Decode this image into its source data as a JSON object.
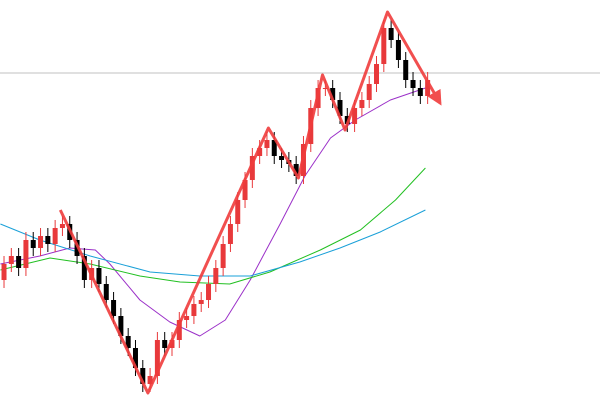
{
  "chart_data": {
    "type": "candlestick",
    "categories": [
      null,
      null,
      null,
      null,
      null,
      null,
      null,
      null,
      null,
      null,
      null,
      null,
      null,
      null,
      null,
      null,
      null,
      null,
      null,
      null,
      null,
      null,
      null,
      null,
      null,
      null,
      null,
      null,
      null,
      null,
      null,
      null,
      null,
      null,
      null,
      null,
      null,
      null,
      null,
      null,
      null,
      null,
      null,
      null,
      null,
      null,
      null,
      null,
      null,
      null,
      null,
      null,
      null,
      null,
      null,
      null,
      null,
      null,
      null
    ],
    "open": [
      30,
      34,
      36,
      33,
      40,
      38,
      41,
      39,
      43,
      44,
      40,
      36,
      30,
      33,
      29,
      25,
      21,
      16,
      13,
      8,
      4,
      6,
      15,
      13,
      15,
      20,
      21,
      24,
      25,
      29,
      33,
      39,
      44,
      50,
      55,
      61,
      63,
      65,
      61,
      60,
      59,
      56,
      64,
      73,
      78,
      78,
      75,
      71,
      69,
      73,
      75,
      79,
      84,
      93,
      90,
      85,
      80,
      78,
      76
    ],
    "high": [
      36,
      38,
      38,
      42,
      42,
      43,
      43,
      45,
      46,
      46,
      42,
      38,
      35,
      35,
      31,
      27,
      23,
      18,
      15,
      10,
      8,
      17,
      17,
      17,
      22,
      23,
      26,
      27,
      31,
      35,
      41,
      46,
      52,
      57,
      63,
      65,
      67,
      67,
      63,
      62,
      61,
      66,
      75,
      80,
      80,
      80,
      77,
      73,
      75,
      77,
      81,
      86,
      95,
      95,
      92,
      87,
      82,
      80,
      82
    ],
    "low": [
      28,
      32,
      31,
      31,
      36,
      36,
      37,
      37,
      41,
      38,
      34,
      28,
      28,
      27,
      23,
      19,
      14,
      11,
      6,
      2,
      2,
      4,
      11,
      11,
      13,
      18,
      19,
      22,
      23,
      27,
      31,
      37,
      42,
      48,
      53,
      59,
      61,
      59,
      58,
      57,
      54,
      54,
      62,
      71,
      76,
      73,
      69,
      67,
      67,
      71,
      73,
      77,
      82,
      88,
      83,
      78,
      76,
      74,
      74
    ],
    "close": [
      34,
      36,
      33,
      40,
      38,
      41,
      39,
      43,
      44,
      40,
      36,
      30,
      33,
      29,
      25,
      21,
      16,
      13,
      8,
      4,
      6,
      15,
      13,
      15,
      20,
      21,
      24,
      25,
      29,
      33,
      39,
      44,
      50,
      55,
      61,
      63,
      65,
      61,
      60,
      59,
      56,
      64,
      73,
      78,
      78,
      75,
      71,
      69,
      73,
      75,
      79,
      84,
      93,
      90,
      85,
      80,
      78,
      76,
      80
    ],
    "up_color": "#e8393b",
    "down_color": "#000000",
    "xlim": [
      -0.55,
      81.6
    ],
    "ylim": [
      0,
      100
    ],
    "lines": [
      {
        "color": "#9b30c8",
        "x": [
          -0.5,
          4.9,
          9,
          12.5,
          14.5,
          18.6,
          22.7,
          26.8,
          30.3,
          33.7,
          37.8,
          41.2,
          44.7,
          48.1,
          52.9,
          57.7
        ],
        "values": [
          34,
          36,
          38,
          37.5,
          34,
          25,
          19.5,
          16,
          20,
          30,
          44,
          56,
          65.5,
          70,
          75,
          78
        ]
      },
      {
        "color": "#22c022",
        "x": [
          -0.5,
          6.3,
          11.8,
          18.6,
          24.1,
          30.9,
          36.4,
          43.3,
          48.8,
          53.6,
          57.7
        ],
        "values": [
          32.5,
          35.5,
          34,
          31,
          29.5,
          29,
          32,
          37.5,
          42.5,
          50,
          58
        ]
      },
      {
        "color": "#1aa0d8",
        "x": [
          -0.5,
          4.9,
          11.8,
          20,
          26.8,
          33.7,
          40.5,
          46,
          51.5,
          57.7
        ],
        "values": [
          44,
          40,
          36,
          32,
          31,
          31,
          34.5,
          38,
          42,
          47.5
        ]
      }
    ],
    "zigzag": {
      "color": "#f03c3c",
      "x": [
        7.7,
        19.7,
        36.2,
        40.3,
        43.6,
        46.7,
        52.5,
        59.7
      ],
      "values": [
        47.5,
        1.75,
        68,
        55.5,
        81.25,
        67.5,
        97,
        74.25
      ]
    },
    "level": {
      "color": "#c0c0c0",
      "value": 81.75
    }
  }
}
